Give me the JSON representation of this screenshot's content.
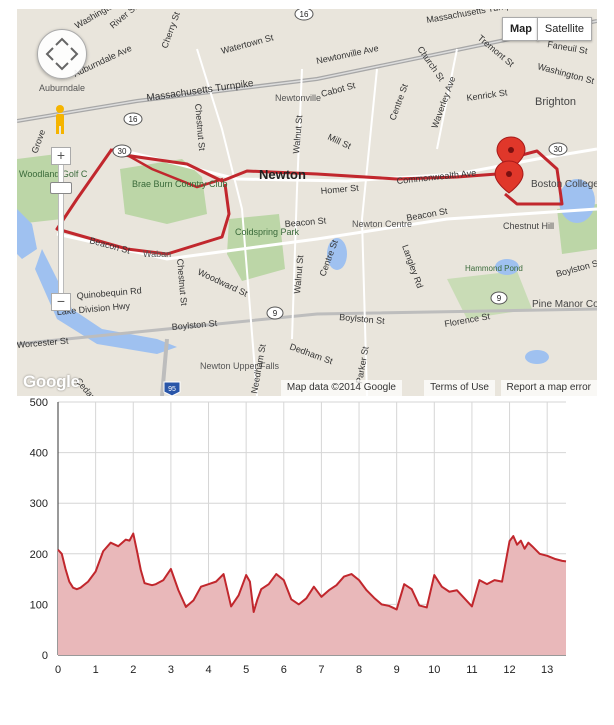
{
  "map": {
    "type_buttons": [
      "Map",
      "Satellite"
    ],
    "attribution": "Map data ©2014 Google",
    "terms": "Terms of Use",
    "report": "Report a map error",
    "logo": "Google",
    "zoom_in": "+",
    "zoom_out": "−",
    "colors": {
      "route": "#c1272d",
      "marker": "#e0372a",
      "road_major": "#a7a7a7",
      "water": "#9fc1f0",
      "park": "#bcd6a7",
      "land": "#e9e5dc"
    },
    "labels": {
      "massachusetts_turnpike_top": "Massachusetts Turnpike (Toll road)",
      "massachusetts_turnpike": "Massachusetts Turnpike",
      "washington_st_top": "Washington St",
      "river_st": "River St",
      "cherry_st": "Cherry St",
      "auburndale_ave": "Auburndale Ave",
      "watertown_st": "Watertown St",
      "newtonville_ave": "Newtonville Ave",
      "church_st": "Church St",
      "tremont_st": "Tremont St",
      "faneuil_st": "Faneuil St",
      "washington_st_right": "Washington St",
      "auburndale": "Auburndale",
      "cabot_st": "Cabot St",
      "newtonville": "Newtonville",
      "centre_st_north": "Centre St",
      "waverley_ave": "Waverley Ave",
      "kenrick_st": "Kenrick St",
      "brighton": "Brighton",
      "chestnut_st_north": "Chestnut St",
      "walnut_st_north": "Walnut St",
      "mill_st": "Mill St",
      "grove_st": "Grove",
      "woodland_golf": "Woodland Golf C",
      "brae_burn": "Brae Burn Country Club",
      "newton": "Newton",
      "homer_st": "Homer St",
      "commonwealth_ave": "Commonwealth Ave",
      "boston_college": "Boston College",
      "beacon_st_center": "Beacon St",
      "newton_centre": "Newton Centre",
      "beacon_st_right": "Beacon St",
      "chestnut_hill": "Chestnut Hill",
      "coldspring_park": "Coldspring Park",
      "beacon_st_left": "Beacon St",
      "waban": "Waban",
      "chestnut_st_south": "Chestnut St",
      "woodward_st": "Woodward St",
      "walnut_st_south": "Walnut St",
      "centre_st_south": "Centre St",
      "langley_rd": "Langley Rd",
      "hammond_pond": "Hammond Pond",
      "boylston_st_right": "Boylston St",
      "quinobequin_rd": "Quinobequin Rd",
      "lake_division_hwy": "Lake Division Hwy",
      "pine_manor": "Pine Manor College",
      "boylston_st_center": "Boylston St",
      "boylston_st_left": "Boylston St",
      "florence_st": "Florence St",
      "worcester_st": "Worcester St",
      "dedham_st": "Dedham St",
      "parker_st": "Parker St",
      "newton_upper_falls": "Newton Upper Falls",
      "needham_st": "Needham St",
      "cedar_st": "Cedar St",
      "route_16_top": "16",
      "route_16_left": "16",
      "route_30_left": "30",
      "route_30_right": "30",
      "route_9_center": "9",
      "route_9_right": "9",
      "route_95": "95"
    }
  },
  "chart_data": {
    "type": "area",
    "color": "#c1272d",
    "fill": "#e9b8ba",
    "xlim": [
      0,
      13.5
    ],
    "ylim": [
      0,
      500
    ],
    "xticks": [
      "0",
      "1",
      "2",
      "3",
      "4",
      "5",
      "6",
      "7",
      "8",
      "9",
      "10",
      "11",
      "12",
      "13"
    ],
    "yticks": [
      "0",
      "100",
      "200",
      "300",
      "400",
      "500"
    ],
    "grid": true,
    "x": [
      0,
      0.1,
      0.2,
      0.3,
      0.4,
      0.5,
      0.6,
      0.8,
      1.0,
      1.2,
      1.4,
      1.6,
      1.8,
      1.9,
      2.0,
      2.1,
      2.2,
      2.3,
      2.4,
      2.5,
      2.6,
      2.8,
      3.0,
      3.2,
      3.4,
      3.6,
      3.8,
      4.0,
      4.2,
      4.4,
      4.6,
      4.8,
      4.9,
      5.0,
      5.1,
      5.2,
      5.3,
      5.4,
      5.6,
      5.8,
      6.0,
      6.2,
      6.4,
      6.6,
      6.8,
      7.0,
      7.2,
      7.4,
      7.6,
      7.8,
      8.0,
      8.2,
      8.4,
      8.6,
      8.8,
      9.0,
      9.2,
      9.4,
      9.6,
      9.8,
      10.0,
      10.2,
      10.4,
      10.6,
      10.8,
      11.0,
      11.2,
      11.4,
      11.6,
      11.8,
      12.0,
      12.1,
      12.2,
      12.3,
      12.4,
      12.5,
      12.6,
      12.8,
      13.0,
      13.2,
      13.3,
      13.4,
      13.5
    ],
    "y": [
      208,
      200,
      170,
      145,
      133,
      130,
      133,
      145,
      165,
      205,
      222,
      215,
      228,
      226,
      240,
      205,
      168,
      142,
      140,
      138,
      140,
      148,
      170,
      128,
      95,
      108,
      135,
      140,
      145,
      160,
      96,
      118,
      138,
      158,
      145,
      85,
      110,
      130,
      140,
      160,
      148,
      110,
      100,
      112,
      135,
      115,
      128,
      138,
      155,
      160,
      148,
      128,
      113,
      100,
      97,
      90,
      140,
      130,
      98,
      94,
      158,
      135,
      125,
      128,
      112,
      96,
      148,
      140,
      148,
      145,
      225,
      235,
      218,
      226,
      210,
      222,
      215,
      200,
      196,
      190,
      188,
      186,
      185
    ]
  }
}
